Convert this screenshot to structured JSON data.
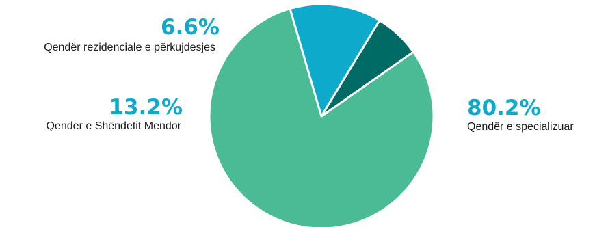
{
  "chart_data": {
    "type": "pie",
    "title": "",
    "slices": [
      {
        "label": "Qendër e specializuar",
        "value": 80.2,
        "display": "80.2%",
        "color": "#4bbb96"
      },
      {
        "label": "Qendër e Shëndetit Mendor",
        "value": 13.2,
        "display": "13.2%",
        "color": "#0eaacb"
      },
      {
        "label": "Qendër rezidenciale e përkujdesjes",
        "value": 6.6,
        "display": "6.6%",
        "color": "#006b64"
      }
    ],
    "legend": "none",
    "start_angle_deg": -35
  }
}
